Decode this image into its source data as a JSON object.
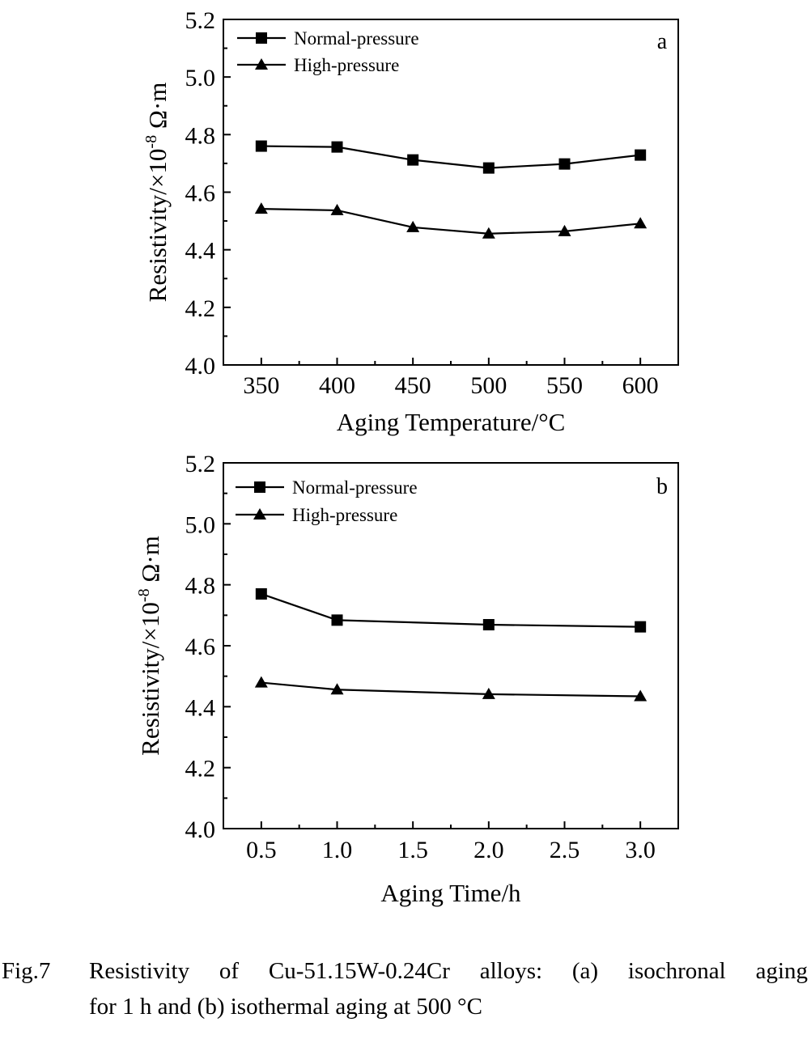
{
  "chart_data": [
    {
      "type": "line",
      "panel_label": "a",
      "xlabel": "Aging Temperature/°C",
      "ylabel_text": "Resistivity/×10",
      "ylabel_exp": "-8",
      "ylabel_unit": " Ω·m",
      "x": [
        350,
        400,
        450,
        500,
        550,
        600
      ],
      "xticks": [
        "350",
        "400",
        "450",
        "500",
        "550",
        "600"
      ],
      "yticks": [
        "4.0",
        "4.2",
        "4.4",
        "4.6",
        "4.8",
        "5.0",
        "5.2"
      ],
      "xlim": [
        325,
        625
      ],
      "ylim": [
        4.0,
        5.2
      ],
      "legend_position": "top-left",
      "series": [
        {
          "name": "Normal-pressure",
          "marker": "square",
          "values": [
            4.76,
            4.757,
            4.712,
            4.684,
            4.698,
            4.729
          ]
        },
        {
          "name": "High-pressure",
          "marker": "triangle",
          "values": [
            4.542,
            4.537,
            4.478,
            4.456,
            4.464,
            4.491
          ]
        }
      ]
    },
    {
      "type": "line",
      "panel_label": "b",
      "xlabel": "Aging Time/h",
      "ylabel_text": "Resistivity/×10",
      "ylabel_exp": "-8",
      "ylabel_unit": " Ω·m",
      "x": [
        0.5,
        1.0,
        2.0,
        3.0
      ],
      "xticks": [
        "0.5",
        "1.0",
        "1.5",
        "2.0",
        "2.5",
        "3.0"
      ],
      "yticks": [
        "4.0",
        "4.2",
        "4.4",
        "4.6",
        "4.8",
        "5.0",
        "5.2"
      ],
      "xlim": [
        0.25,
        3.25
      ],
      "ylim": [
        4.0,
        5.2
      ],
      "legend_position": "top-left",
      "series": [
        {
          "name": "Normal-pressure",
          "marker": "square",
          "values": [
            4.77,
            4.684,
            4.669,
            4.662
          ]
        },
        {
          "name": "High-pressure",
          "marker": "triangle",
          "values": [
            4.479,
            4.456,
            4.441,
            4.434
          ]
        }
      ]
    }
  ],
  "caption": {
    "number": "Fig.7",
    "line1": "Resistivity of Cu-51.15W-0.24Cr alloys: (a) isochronal aging",
    "line2": "for 1 h and (b) isothermal aging at 500 °C"
  }
}
